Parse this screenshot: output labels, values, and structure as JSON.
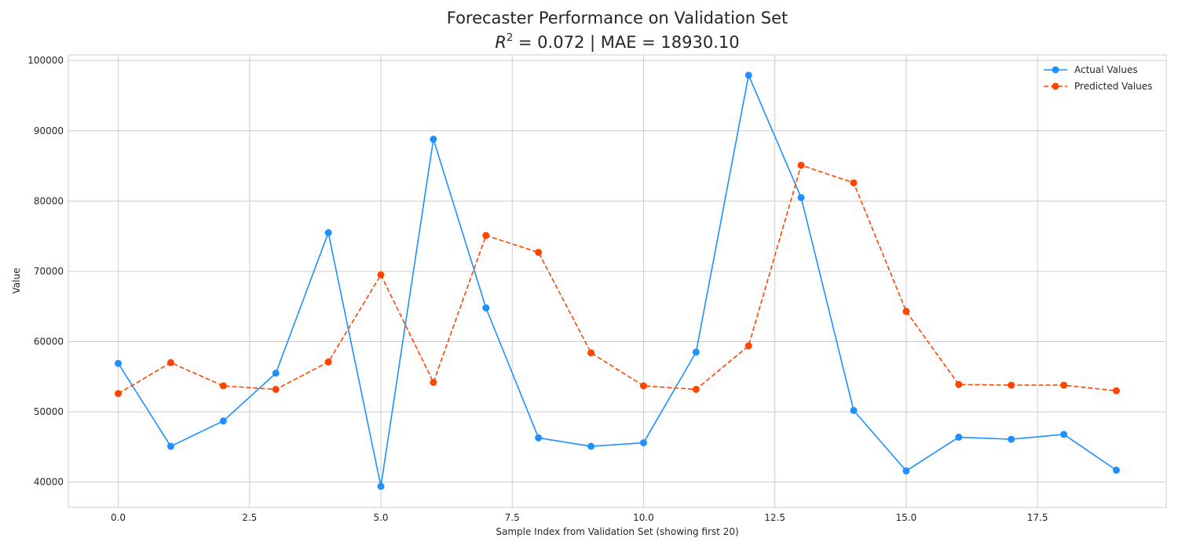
{
  "chart_data": {
    "type": "line",
    "title": "Forecaster Performance on Validation Set",
    "subtitle": {
      "r2_symbol": "R",
      "r2_superscript": "2",
      "r2_rest": " = 0.072 | MAE = 18930.10"
    },
    "xlabel": "Sample Index from Validation Set (showing first 20)",
    "ylabel": "Value",
    "xlim": [
      -0.95,
      19.95
    ],
    "ylim": [
      36400,
      100800
    ],
    "x_ticks": [
      0.0,
      2.5,
      5.0,
      7.5,
      10.0,
      12.5,
      15.0,
      17.5
    ],
    "x_tick_labels": [
      "0.0",
      "2.5",
      "5.0",
      "7.5",
      "10.0",
      "12.5",
      "15.0",
      "17.5"
    ],
    "y_ticks": [
      40000,
      50000,
      60000,
      70000,
      80000,
      90000,
      100000
    ],
    "y_tick_labels": [
      "40000",
      "50000",
      "60000",
      "70000",
      "80000",
      "90000",
      "100000"
    ],
    "grid": true,
    "legend_position": "top-right",
    "x": [
      0,
      1,
      2,
      3,
      4,
      5,
      6,
      7,
      8,
      9,
      10,
      11,
      12,
      13,
      14,
      15,
      16,
      17,
      18,
      19
    ],
    "series": [
      {
        "name": "Actual Values",
        "color": "#1e90ff",
        "line_style": "solid",
        "values": [
          56900,
          45100,
          48700,
          55500,
          75500,
          39400,
          88800,
          64800,
          46300,
          45100,
          45600,
          58500,
          97900,
          80500,
          50200,
          41600,
          46400,
          46100,
          46800,
          41700
        ]
      },
      {
        "name": "Predicted Values",
        "color": "#ff4500",
        "line_style": "dashed",
        "values": [
          52600,
          57000,
          53700,
          53200,
          57100,
          69500,
          54200,
          75100,
          72700,
          58400,
          53700,
          53200,
          59400,
          85100,
          82600,
          64300,
          53900,
          53800,
          53800,
          53000
        ]
      }
    ]
  }
}
